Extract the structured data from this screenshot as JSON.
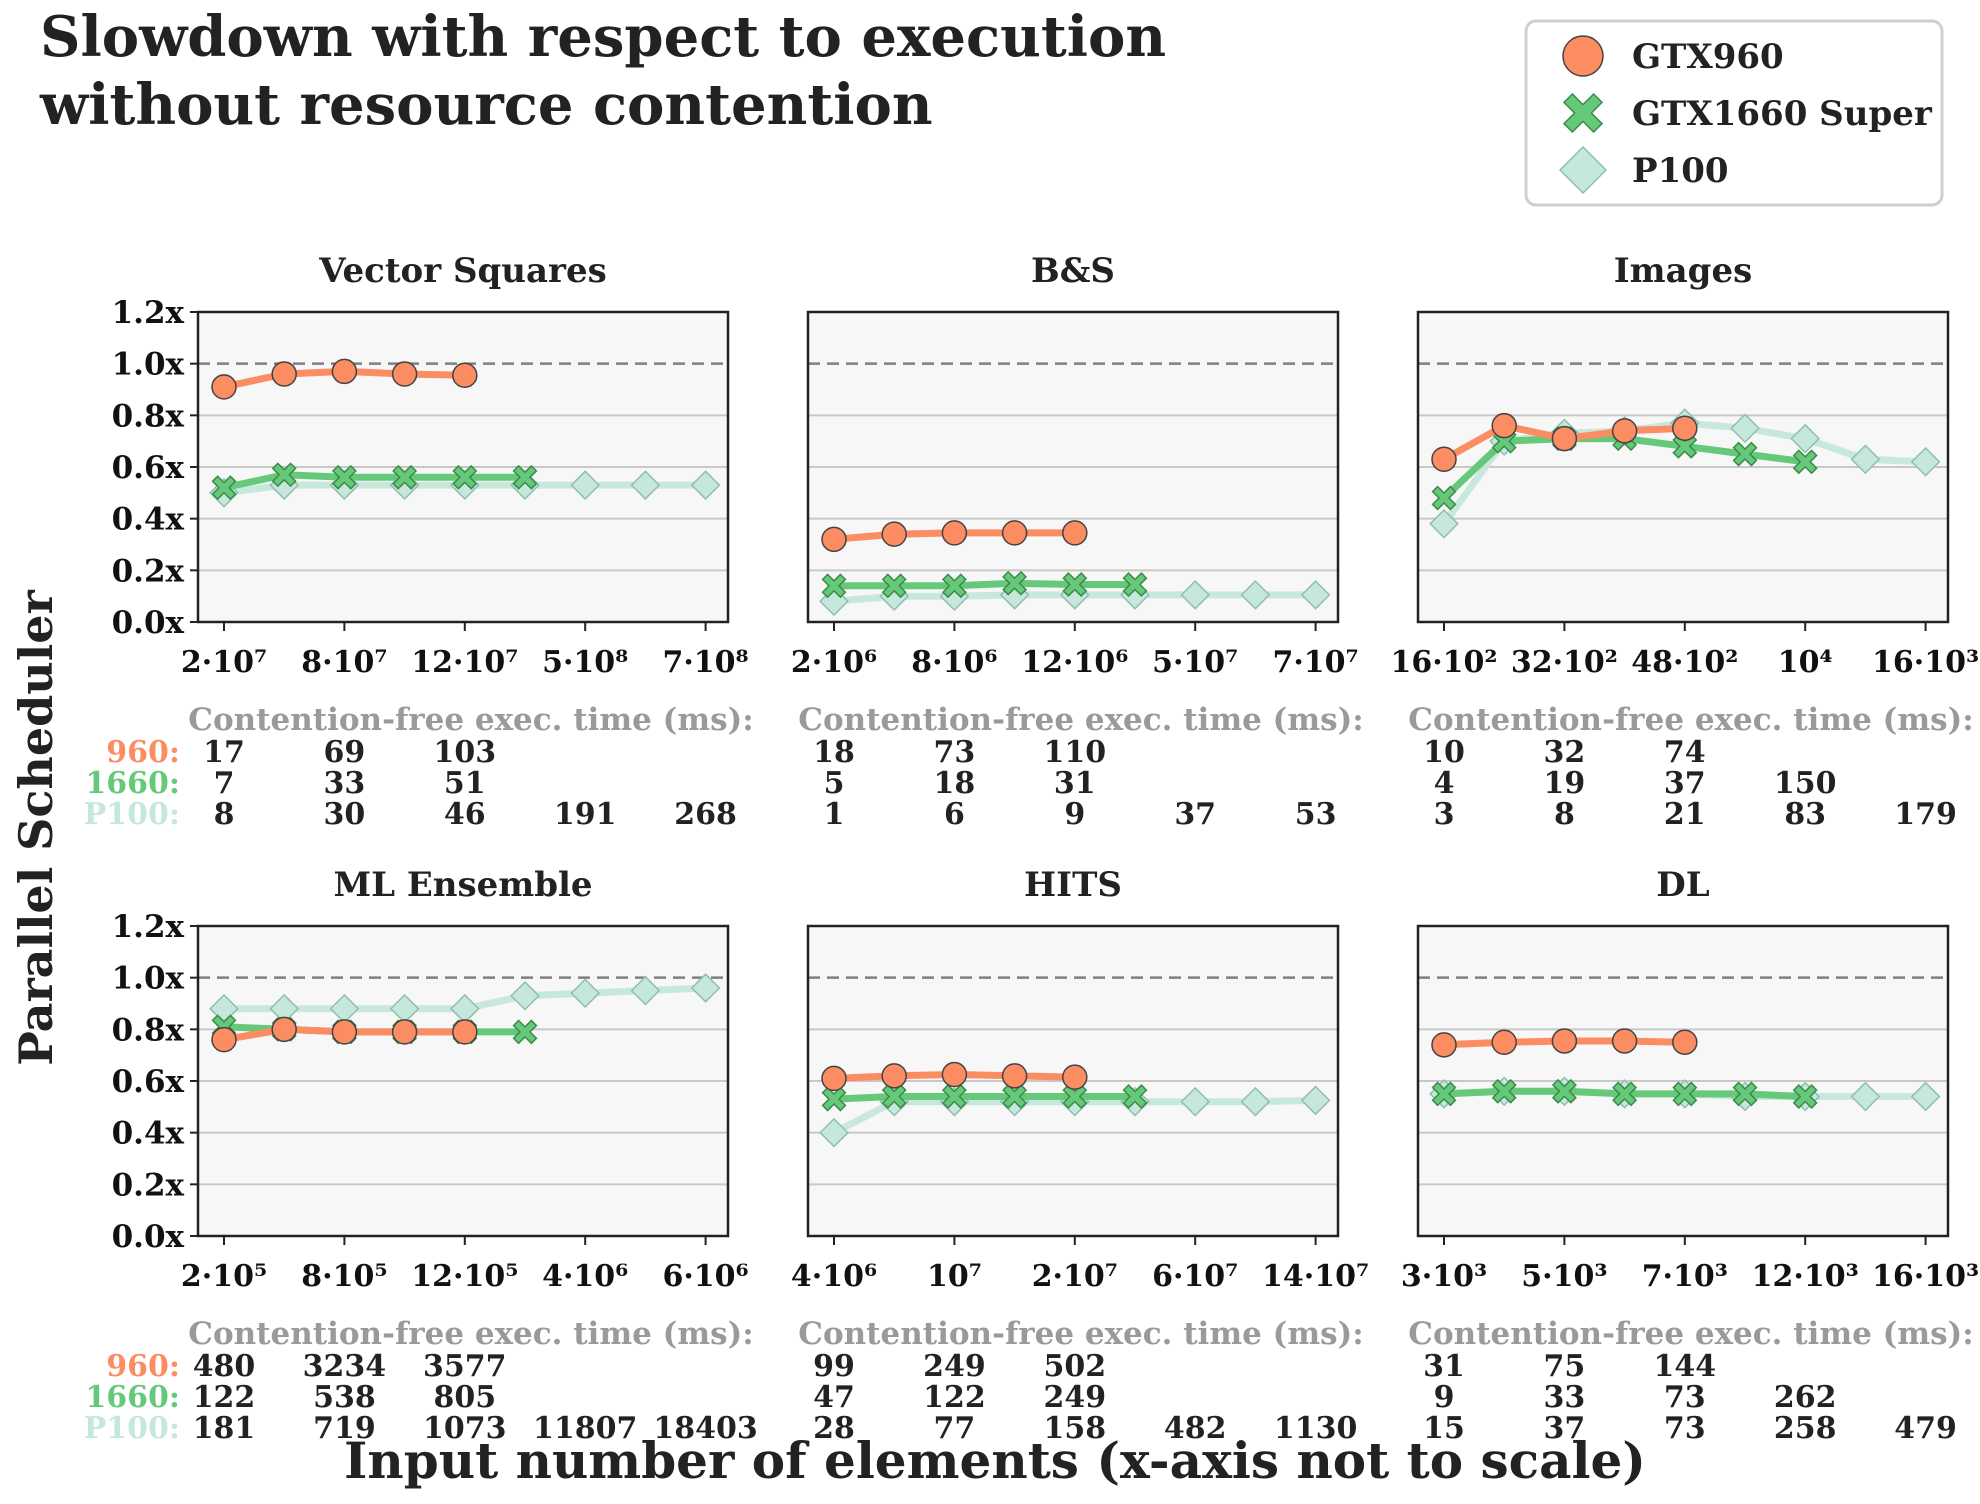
{
  "title_lines": [
    "Slowdown with respect to execution",
    "without resource contention"
  ],
  "ylabel": "Parallel Scheduler",
  "xlabel": "Input number of elements (x-axis not to scale)",
  "contention_label": "Contention-free exec. time (ms):",
  "colors": {
    "gtx960": "#fc8d62",
    "gtx1660": "#66c97a",
    "p100": "#c6e7db"
  },
  "legend": [
    {
      "key": "gtx960",
      "label": "GTX960",
      "marker": "circle"
    },
    {
      "key": "gtx1660",
      "label": "GTX1660 Super",
      "marker": "x"
    },
    {
      "key": "p100",
      "label": "P100",
      "marker": "diamond"
    }
  ],
  "chart_data": [
    {
      "type": "line",
      "title": "Vector Squares",
      "x_tick_labels": [
        {
          "mant": "2",
          "exp": "7",
          "lab": "2·10⁷"
        },
        {
          "mant": "8",
          "exp": "7"
        },
        {
          "mant": "12",
          "exp": "7"
        },
        {
          "mant": "5",
          "exp": "8"
        },
        {
          "mant": "7",
          "exp": "8"
        }
      ],
      "y_ticks": [
        "0.0x",
        "0.2x",
        "0.4x",
        "0.6x",
        "0.8x",
        "1.0x",
        "1.2x"
      ],
      "ylim": [
        0,
        1.2
      ],
      "series": [
        {
          "key": "gtx960",
          "values": [
            0.91,
            0.96,
            0.97,
            0.96,
            0.955
          ]
        },
        {
          "key": "gtx1660",
          "values": [
            0.52,
            0.57,
            0.56,
            0.56,
            0.56,
            0.56
          ]
        },
        {
          "key": "p100",
          "values": [
            0.5,
            0.53,
            0.53,
            0.53,
            0.53,
            0.53,
            0.53,
            0.53,
            0.53
          ]
        }
      ],
      "exec_times": {
        "960": [
          "17",
          "69",
          "103"
        ],
        "1660": [
          "7",
          "33",
          "51"
        ],
        "P100": [
          "8",
          "30",
          "46",
          "191",
          "268"
        ]
      }
    },
    {
      "type": "line",
      "title": "B&S",
      "x_tick_labels": [
        {
          "mant": "2",
          "exp": "6"
        },
        {
          "mant": "8",
          "exp": "6"
        },
        {
          "mant": "12",
          "exp": "6"
        },
        {
          "mant": "5",
          "exp": "7"
        },
        {
          "mant": "7",
          "exp": "7"
        }
      ],
      "y_ticks": [
        "0.0x",
        "0.2x",
        "0.4x",
        "0.6x",
        "0.8x",
        "1.0x",
        "1.2x"
      ],
      "ylim": [
        0,
        1.2
      ],
      "series": [
        {
          "key": "gtx960",
          "values": [
            0.32,
            0.34,
            0.345,
            0.345,
            0.345
          ]
        },
        {
          "key": "gtx1660",
          "values": [
            0.14,
            0.14,
            0.14,
            0.15,
            0.145,
            0.145
          ]
        },
        {
          "key": "p100",
          "values": [
            0.08,
            0.1,
            0.1,
            0.105,
            0.105,
            0.105,
            0.105,
            0.105,
            0.105
          ]
        }
      ],
      "exec_times": {
        "960": [
          "18",
          "73",
          "110"
        ],
        "1660": [
          "5",
          "18",
          "31"
        ],
        "P100": [
          "1",
          "6",
          "9",
          "37",
          "53"
        ]
      }
    },
    {
      "type": "line",
      "title": "Images",
      "x_tick_labels": [
        {
          "mant": "16",
          "exp": "2"
        },
        {
          "mant": "32",
          "exp": "2"
        },
        {
          "mant": "48",
          "exp": "2"
        },
        {
          "mant": "",
          "exp": "4"
        },
        {
          "mant": "16",
          "exp": "3"
        }
      ],
      "y_ticks": [
        "0.0x",
        "0.2x",
        "0.4x",
        "0.6x",
        "0.8x",
        "1.0x",
        "1.2x"
      ],
      "ylim": [
        0,
        1.2
      ],
      "series": [
        {
          "key": "gtx960",
          "values": [
            0.63,
            0.76,
            0.71,
            0.74,
            0.75
          ]
        },
        {
          "key": "gtx1660",
          "values": [
            0.48,
            0.7,
            0.71,
            0.71,
            0.68,
            0.65,
            0.62
          ]
        },
        {
          "key": "p100",
          "values": [
            0.38,
            0.7,
            0.73,
            0.74,
            0.77,
            0.75,
            0.71,
            0.63,
            0.62
          ]
        }
      ],
      "exec_times": {
        "960": [
          "10",
          "32",
          "74"
        ],
        "1660": [
          "4",
          "19",
          "37",
          "150"
        ],
        "P100": [
          "3",
          "8",
          "21",
          "83",
          "179"
        ]
      }
    },
    {
      "type": "line",
      "title": "ML Ensemble",
      "x_tick_labels": [
        {
          "mant": "2",
          "exp": "5"
        },
        {
          "mant": "8",
          "exp": "5"
        },
        {
          "mant": "12",
          "exp": "5"
        },
        {
          "mant": "4",
          "exp": "6"
        },
        {
          "mant": "6",
          "exp": "6"
        }
      ],
      "y_ticks": [
        "0.0x",
        "0.2x",
        "0.4x",
        "0.6x",
        "0.8x",
        "1.0x",
        "1.2x"
      ],
      "ylim": [
        0,
        1.2
      ],
      "series": [
        {
          "key": "gtx960",
          "values": [
            0.76,
            0.8,
            0.79,
            0.79,
            0.79
          ]
        },
        {
          "key": "gtx1660",
          "values": [
            0.81,
            0.8,
            0.79,
            0.79,
            0.79,
            0.79
          ]
        },
        {
          "key": "p100",
          "values": [
            0.88,
            0.88,
            0.88,
            0.88,
            0.88,
            0.93,
            0.94,
            0.95,
            0.96
          ]
        }
      ],
      "exec_times": {
        "960": [
          "480",
          "3234",
          "3577"
        ],
        "1660": [
          "122",
          "538",
          "805"
        ],
        "P100": [
          "181",
          "719",
          "1073",
          "11807",
          "18403"
        ]
      }
    },
    {
      "type": "line",
      "title": "HITS",
      "x_tick_labels": [
        {
          "mant": "4",
          "exp": "6"
        },
        {
          "mant": "",
          "exp": "7"
        },
        {
          "mant": "2",
          "exp": "7"
        },
        {
          "mant": "6",
          "exp": "7"
        },
        {
          "mant": "14",
          "exp": "7"
        }
      ],
      "y_ticks": [
        "0.0x",
        "0.2x",
        "0.4x",
        "0.6x",
        "0.8x",
        "1.0x",
        "1.2x"
      ],
      "ylim": [
        0,
        1.2
      ],
      "series": [
        {
          "key": "gtx960",
          "values": [
            0.61,
            0.62,
            0.625,
            0.62,
            0.615
          ]
        },
        {
          "key": "gtx1660",
          "values": [
            0.53,
            0.54,
            0.54,
            0.54,
            0.54,
            0.54
          ]
        },
        {
          "key": "p100",
          "values": [
            0.4,
            0.52,
            0.52,
            0.52,
            0.52,
            0.52,
            0.52,
            0.52,
            0.525
          ]
        }
      ],
      "exec_times": {
        "960": [
          "99",
          "249",
          "502"
        ],
        "1660": [
          "47",
          "122",
          "249"
        ],
        "P100": [
          "28",
          "77",
          "158",
          "482",
          "1130"
        ]
      }
    },
    {
      "type": "line",
      "title": "DL",
      "x_tick_labels": [
        {
          "mant": "3",
          "exp": "3"
        },
        {
          "mant": "5",
          "exp": "3"
        },
        {
          "mant": "7",
          "exp": "3"
        },
        {
          "mant": "12",
          "exp": "3"
        },
        {
          "mant": "16",
          "exp": "3"
        }
      ],
      "y_ticks": [
        "0.0x",
        "0.2x",
        "0.4x",
        "0.6x",
        "0.8x",
        "1.0x",
        "1.2x"
      ],
      "ylim": [
        0,
        1.2
      ],
      "series": [
        {
          "key": "gtx960",
          "values": [
            0.74,
            0.75,
            0.755,
            0.755,
            0.75
          ]
        },
        {
          "key": "gtx1660",
          "values": [
            0.55,
            0.56,
            0.56,
            0.55,
            0.55,
            0.55,
            0.54
          ]
        },
        {
          "key": "p100",
          "values": [
            0.55,
            0.56,
            0.56,
            0.55,
            0.55,
            0.54,
            0.54,
            0.54,
            0.54
          ]
        }
      ],
      "exec_times": {
        "960": [
          "31",
          "75",
          "144"
        ],
        "1660": [
          "9",
          "33",
          "73",
          "262"
        ],
        "P100": [
          "15",
          "37",
          "73",
          "258",
          "479"
        ]
      }
    }
  ]
}
